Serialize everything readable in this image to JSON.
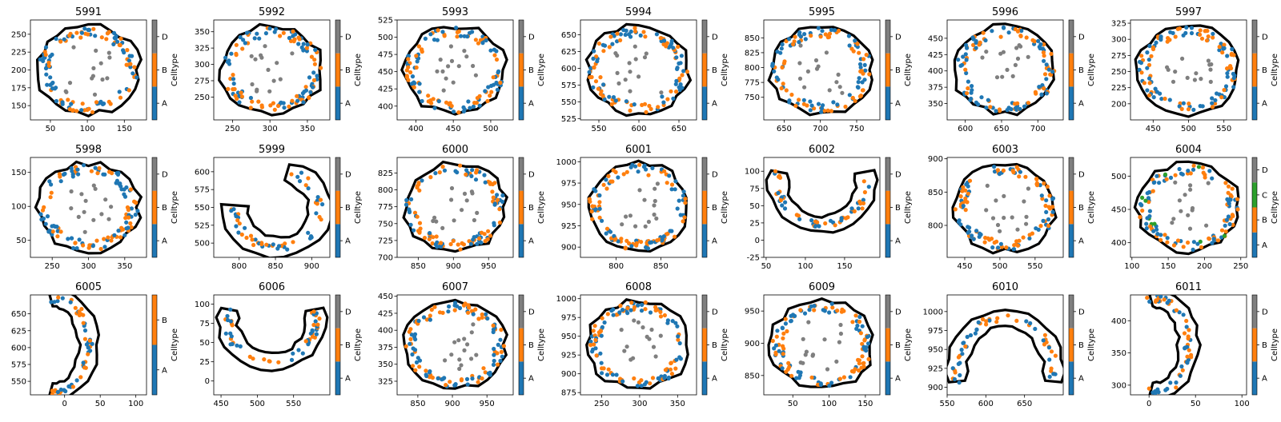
{
  "colorbar_label": "Celltype",
  "palette": {
    "A": "#1f77b4",
    "B": "#ff7f0e",
    "C": "#2ca02c",
    "D": "#7f7f7f",
    "outline": "#000000"
  },
  "chart_data": [
    {
      "type": "scatter",
      "title": "5991",
      "shape": "ring",
      "xlim": [
        23,
        180
      ],
      "ylim": [
        130,
        270
      ],
      "xticks": [
        50,
        100,
        150
      ],
      "yticks": [
        150,
        175,
        200,
        225,
        250
      ],
      "categories": [
        "A",
        "B",
        "D"
      ]
    },
    {
      "type": "scatter",
      "title": "5992",
      "shape": "ring",
      "xlim": [
        225,
        380
      ],
      "ylim": [
        215,
        368
      ],
      "xticks": [
        250,
        300,
        350
      ],
      "yticks": [
        250,
        275,
        300,
        325,
        350
      ],
      "categories": [
        "A",
        "B",
        "D"
      ]
    },
    {
      "type": "scatter",
      "title": "5993",
      "shape": "ring",
      "xlim": [
        375,
        530
      ],
      "ylim": [
        380,
        525
      ],
      "xticks": [
        400,
        450,
        500
      ],
      "yticks": [
        400,
        425,
        450,
        475,
        500,
        525
      ],
      "categories": [
        "A",
        "B",
        "D"
      ]
    },
    {
      "type": "scatter",
      "title": "5994",
      "shape": "ring",
      "xlim": [
        527,
        672
      ],
      "ylim": [
        523,
        672
      ],
      "xticks": [
        550,
        600,
        650
      ],
      "yticks": [
        525,
        550,
        575,
        600,
        625,
        650
      ],
      "categories": [
        "A",
        "B",
        "D"
      ]
    },
    {
      "type": "scatter",
      "title": "5995",
      "shape": "ring",
      "xlim": [
        622,
        782
      ],
      "ylim": [
        712,
        880
      ],
      "xticks": [
        650,
        700,
        750
      ],
      "yticks": [
        750,
        775,
        800,
        825,
        850
      ],
      "categories": [
        "A",
        "B",
        "D"
      ]
    },
    {
      "type": "scatter",
      "title": "5996",
      "shape": "ring",
      "xlim": [
        575,
        735
      ],
      "ylim": [
        325,
        478
      ],
      "xticks": [
        600,
        650,
        700
      ],
      "yticks": [
        350,
        375,
        400,
        425,
        450
      ],
      "categories": [
        "A",
        "B",
        "D"
      ]
    },
    {
      "type": "scatter",
      "title": "5997",
      "shape": "ring",
      "xlim": [
        418,
        582
      ],
      "ylim": [
        175,
        330
      ],
      "xticks": [
        450,
        500,
        550
      ],
      "yticks": [
        200,
        225,
        250,
        275,
        300,
        325
      ],
      "categories": [
        "A",
        "B",
        "D"
      ]
    },
    {
      "type": "scatter",
      "title": "5998",
      "shape": "ring",
      "xlim": [
        220,
        380
      ],
      "ylim": [
        25,
        172
      ],
      "xticks": [
        250,
        300,
        350
      ],
      "yticks": [
        50,
        100,
        150
      ],
      "categories": [
        "A",
        "B",
        "D"
      ]
    },
    {
      "type": "scatter",
      "title": "5999",
      "shape": "open-ring",
      "xlim": [
        765,
        925
      ],
      "ylim": [
        480,
        620
      ],
      "xticks": [
        800,
        850,
        900
      ],
      "yticks": [
        500,
        525,
        550,
        575,
        600
      ],
      "categories": [
        "A",
        "B",
        "D"
      ]
    },
    {
      "type": "scatter",
      "title": "6000",
      "shape": "ring",
      "xlim": [
        820,
        985
      ],
      "ylim": [
        700,
        848
      ],
      "xticks": [
        850,
        900,
        950
      ],
      "yticks": [
        700,
        725,
        750,
        775,
        800,
        825
      ],
      "categories": [
        "A",
        "B",
        "D"
      ]
    },
    {
      "type": "scatter",
      "title": "6001",
      "shape": "ring",
      "xlim": [
        760,
        890
      ],
      "ylim": [
        888,
        1005
      ],
      "xticks": [
        800,
        850
      ],
      "yticks": [
        900,
        925,
        950,
        975,
        1000
      ],
      "categories": [
        "A",
        "B",
        "D"
      ]
    },
    {
      "type": "scatter",
      "title": "6002",
      "shape": "arch",
      "xlim": [
        47,
        195
      ],
      "ylim": [
        -25,
        120
      ],
      "xticks": [
        50,
        100,
        150
      ],
      "yticks": [
        -25,
        0,
        25,
        50,
        75,
        100
      ],
      "categories": [
        "A",
        "B",
        "D"
      ]
    },
    {
      "type": "scatter",
      "title": "6003",
      "shape": "ring",
      "xlim": [
        425,
        590
      ],
      "ylim": [
        752,
        902
      ],
      "xticks": [
        450,
        500,
        550
      ],
      "yticks": [
        800,
        850,
        900
      ],
      "categories": [
        "A",
        "B",
        "D"
      ]
    },
    {
      "type": "scatter",
      "title": "6004",
      "shape": "ring",
      "xlim": [
        98,
        258
      ],
      "ylim": [
        378,
        528
      ],
      "xticks": [
        100,
        150,
        200,
        250
      ],
      "yticks": [
        400,
        450,
        500
      ],
      "categories": [
        "A",
        "B",
        "C",
        "D"
      ]
    },
    {
      "type": "scatter",
      "title": "6005",
      "shape": "c-curve",
      "xlim": [
        -48,
        115
      ],
      "ylim": [
        530,
        678
      ],
      "xticks": [
        0,
        50,
        100
      ],
      "yticks": [
        550,
        575,
        600,
        625,
        650
      ],
      "categories": [
        "A",
        "B"
      ]
    },
    {
      "type": "scatter",
      "title": "6006",
      "shape": "arch",
      "xlim": [
        440,
        600
      ],
      "ylim": [
        -18,
        112
      ],
      "xticks": [
        450,
        500,
        550
      ],
      "yticks": [
        0,
        25,
        50,
        75,
        100
      ],
      "categories": [
        "A",
        "B",
        "D"
      ]
    },
    {
      "type": "scatter",
      "title": "6007",
      "shape": "ring",
      "xlim": [
        820,
        988
      ],
      "ylim": [
        305,
        452
      ],
      "xticks": [
        850,
        900,
        950
      ],
      "yticks": [
        325,
        350,
        375,
        400,
        425,
        450
      ],
      "categories": [
        "A",
        "B",
        "D"
      ]
    },
    {
      "type": "scatter",
      "title": "6008",
      "shape": "ring",
      "xlim": [
        222,
        375
      ],
      "ylim": [
        872,
        1005
      ],
      "xticks": [
        250,
        300,
        350
      ],
      "yticks": [
        875,
        900,
        925,
        950,
        975,
        1000
      ],
      "categories": [
        "A",
        "B",
        "D"
      ]
    },
    {
      "type": "scatter",
      "title": "6009",
      "shape": "ring",
      "xlim": [
        10,
        170
      ],
      "ylim": [
        820,
        975
      ],
      "xticks": [
        50,
        100,
        150
      ],
      "yticks": [
        850,
        900,
        950
      ],
      "categories": [
        "A",
        "B",
        "D"
      ]
    },
    {
      "type": "scatter",
      "title": "6010",
      "shape": "u-curve",
      "xlim": [
        550,
        700
      ],
      "ylim": [
        890,
        1022
      ],
      "xticks": [
        550,
        600,
        650
      ],
      "yticks": [
        900,
        925,
        950,
        975,
        1000
      ],
      "categories": [
        "A",
        "B",
        "D"
      ]
    },
    {
      "type": "scatter",
      "title": "6011",
      "shape": "c-curve",
      "xlim": [
        -20,
        105
      ],
      "ylim": [
        285,
        440
      ],
      "xticks": [
        0,
        50,
        100
      ],
      "yticks": [
        300,
        350,
        400
      ],
      "categories": [
        "A",
        "B",
        "D"
      ]
    }
  ]
}
